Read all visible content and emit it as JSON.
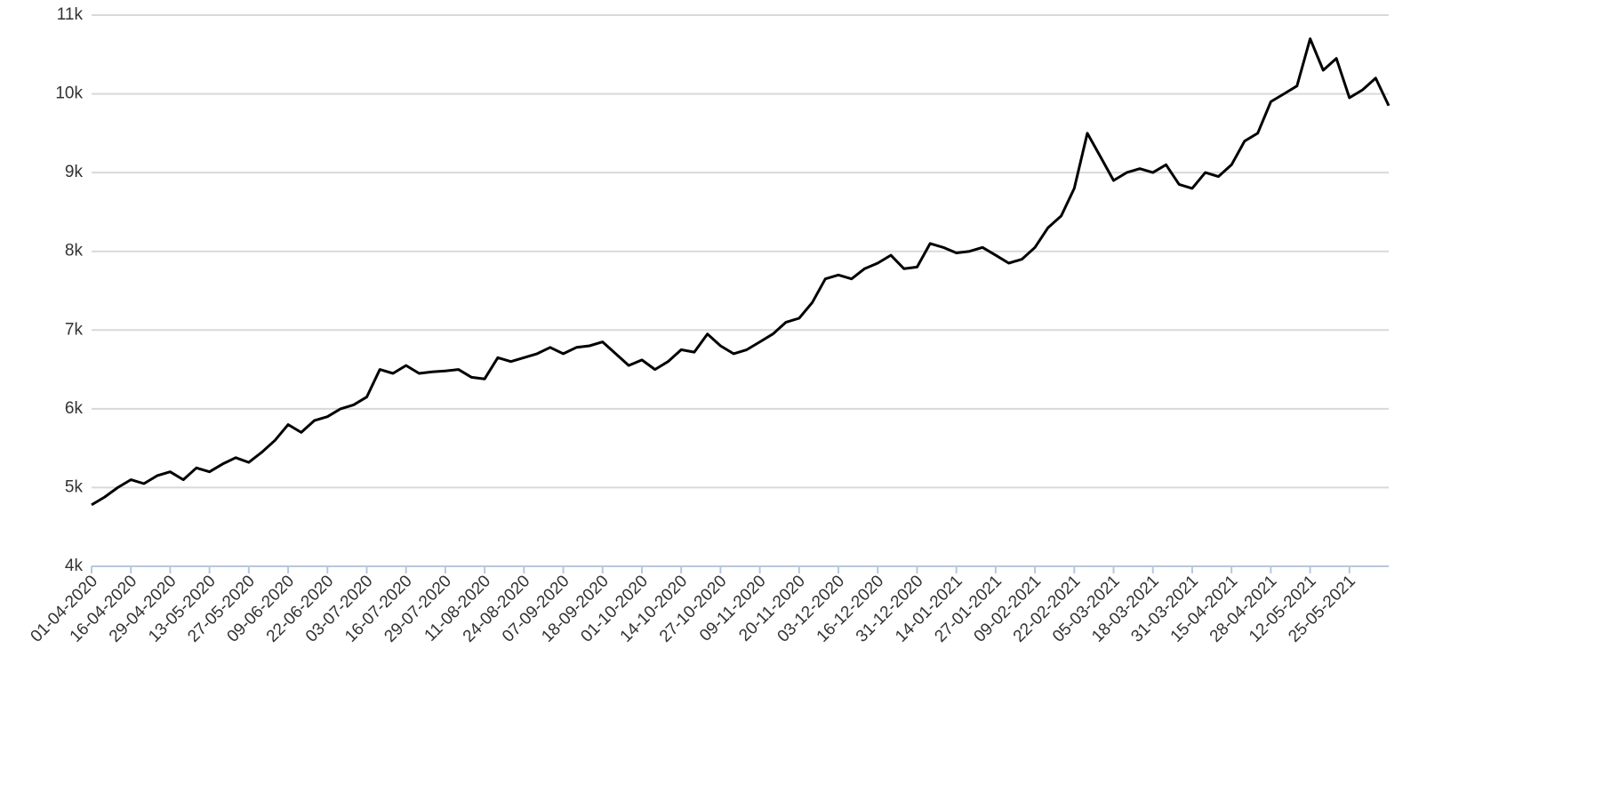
{
  "chart_data": {
    "type": "line",
    "categories": [
      "01-04-2020",
      null,
      null,
      "16-04-2020",
      null,
      null,
      "29-04-2020",
      null,
      null,
      "13-05-2020",
      null,
      null,
      "27-05-2020",
      null,
      null,
      "09-06-2020",
      null,
      null,
      "22-06-2020",
      null,
      null,
      "03-07-2020",
      null,
      null,
      "16-07-2020",
      null,
      null,
      "29-07-2020",
      null,
      null,
      "11-08-2020",
      null,
      null,
      "24-08-2020",
      null,
      null,
      "07-09-2020",
      null,
      null,
      "18-09-2020",
      null,
      null,
      "01-10-2020",
      null,
      null,
      "14-10-2020",
      null,
      null,
      "27-10-2020",
      null,
      null,
      "09-11-2020",
      null,
      null,
      "20-11-2020",
      null,
      null,
      "03-12-2020",
      null,
      null,
      "16-12-2020",
      null,
      null,
      "31-12-2020",
      null,
      null,
      "14-01-2021",
      null,
      null,
      "27-01-2021",
      null,
      null,
      "09-02-2021",
      null,
      null,
      "22-02-2021",
      null,
      null,
      "05-03-2021",
      null,
      null,
      "18-03-2021",
      null,
      null,
      "31-03-2021",
      null,
      null,
      "15-04-2021",
      null,
      null,
      "28-04-2021",
      null,
      null,
      "12-05-2021",
      null,
      null,
      "25-05-2021",
      null,
      null,
      null
    ],
    "series": [
      {
        "color": "#000000",
        "values": [
          4780,
          4880,
          5000,
          5100,
          5050,
          5150,
          5200,
          5100,
          5250,
          5200,
          5300,
          5380,
          5320,
          5450,
          5600,
          5800,
          5700,
          5850,
          5900,
          6000,
          6050,
          6150,
          6500,
          6450,
          6550,
          6450,
          6470,
          6480,
          6500,
          6400,
          6380,
          6650,
          6600,
          6650,
          6700,
          6780,
          6700,
          6780,
          6800,
          6850,
          6700,
          6550,
          6620,
          6500,
          6600,
          6750,
          6720,
          6950,
          6800,
          6700,
          6750,
          6850,
          6950,
          7100,
          7150,
          7350,
          7650,
          7700,
          7650,
          7780,
          7850,
          7950,
          7780,
          7800,
          8100,
          8050,
          7980,
          8000,
          8050,
          7950,
          7850,
          7900,
          8050,
          8300,
          8450,
          8800,
          9500,
          9200,
          8900,
          9000,
          9050,
          9000,
          9100,
          8850,
          8800,
          9000,
          8950,
          9100,
          9400,
          9500,
          9900,
          10000,
          10100,
          10700,
          10300,
          10450,
          9950,
          10050,
          10200,
          9850
        ]
      }
    ],
    "ylim": [
      4000,
      11000
    ],
    "yticks": [
      {
        "value": 4000,
        "label": "4k"
      },
      {
        "value": 5000,
        "label": "5k"
      },
      {
        "value": 6000,
        "label": "6k"
      },
      {
        "value": 7000,
        "label": "7k"
      },
      {
        "value": 8000,
        "label": "8k"
      },
      {
        "value": 9000,
        "label": "9k"
      },
      {
        "value": 10000,
        "label": "10k"
      },
      {
        "value": 11000,
        "label": "11k"
      }
    ],
    "grid": true
  }
}
